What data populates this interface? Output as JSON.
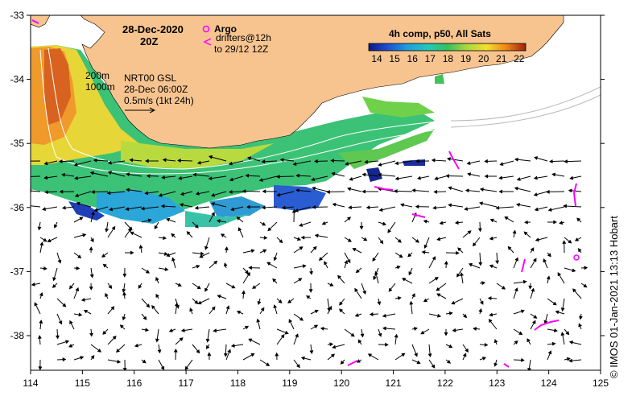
{
  "map": {
    "date_line": "28-Dec-2020",
    "time_line": "20Z",
    "legend_argo": "Argo",
    "legend_drifters_1": "drifters@12h",
    "legend_drifters_2": "to 29/12 12Z",
    "contour_200": "200m",
    "contour_1000": "1000m",
    "product_line": "NRT00 GSL",
    "product_time": "28-Dec 06:00Z",
    "scale_line": "0.5m/s (1kt 24h)",
    "colorbar_title": "4h comp, p50, All Sats",
    "colorbar_ticks": [
      "14",
      "15",
      "16",
      "17",
      "18",
      "19",
      "20",
      "21",
      "22"
    ],
    "x_ticks": [
      "114",
      "115",
      "116",
      "117",
      "118",
      "119",
      "120",
      "121",
      "122",
      "123",
      "124",
      "125"
    ],
    "y_ticks": [
      "-33",
      "-34",
      "-35",
      "-36",
      "-37",
      "-38"
    ],
    "credit": "IMOS 01-Jan-2021 13:13 Hobart",
    "credit_symbol": "©",
    "colors": {
      "land": "#f7c48f",
      "argo": "#ff00ff",
      "drifter": "#ff00ff"
    }
  }
}
